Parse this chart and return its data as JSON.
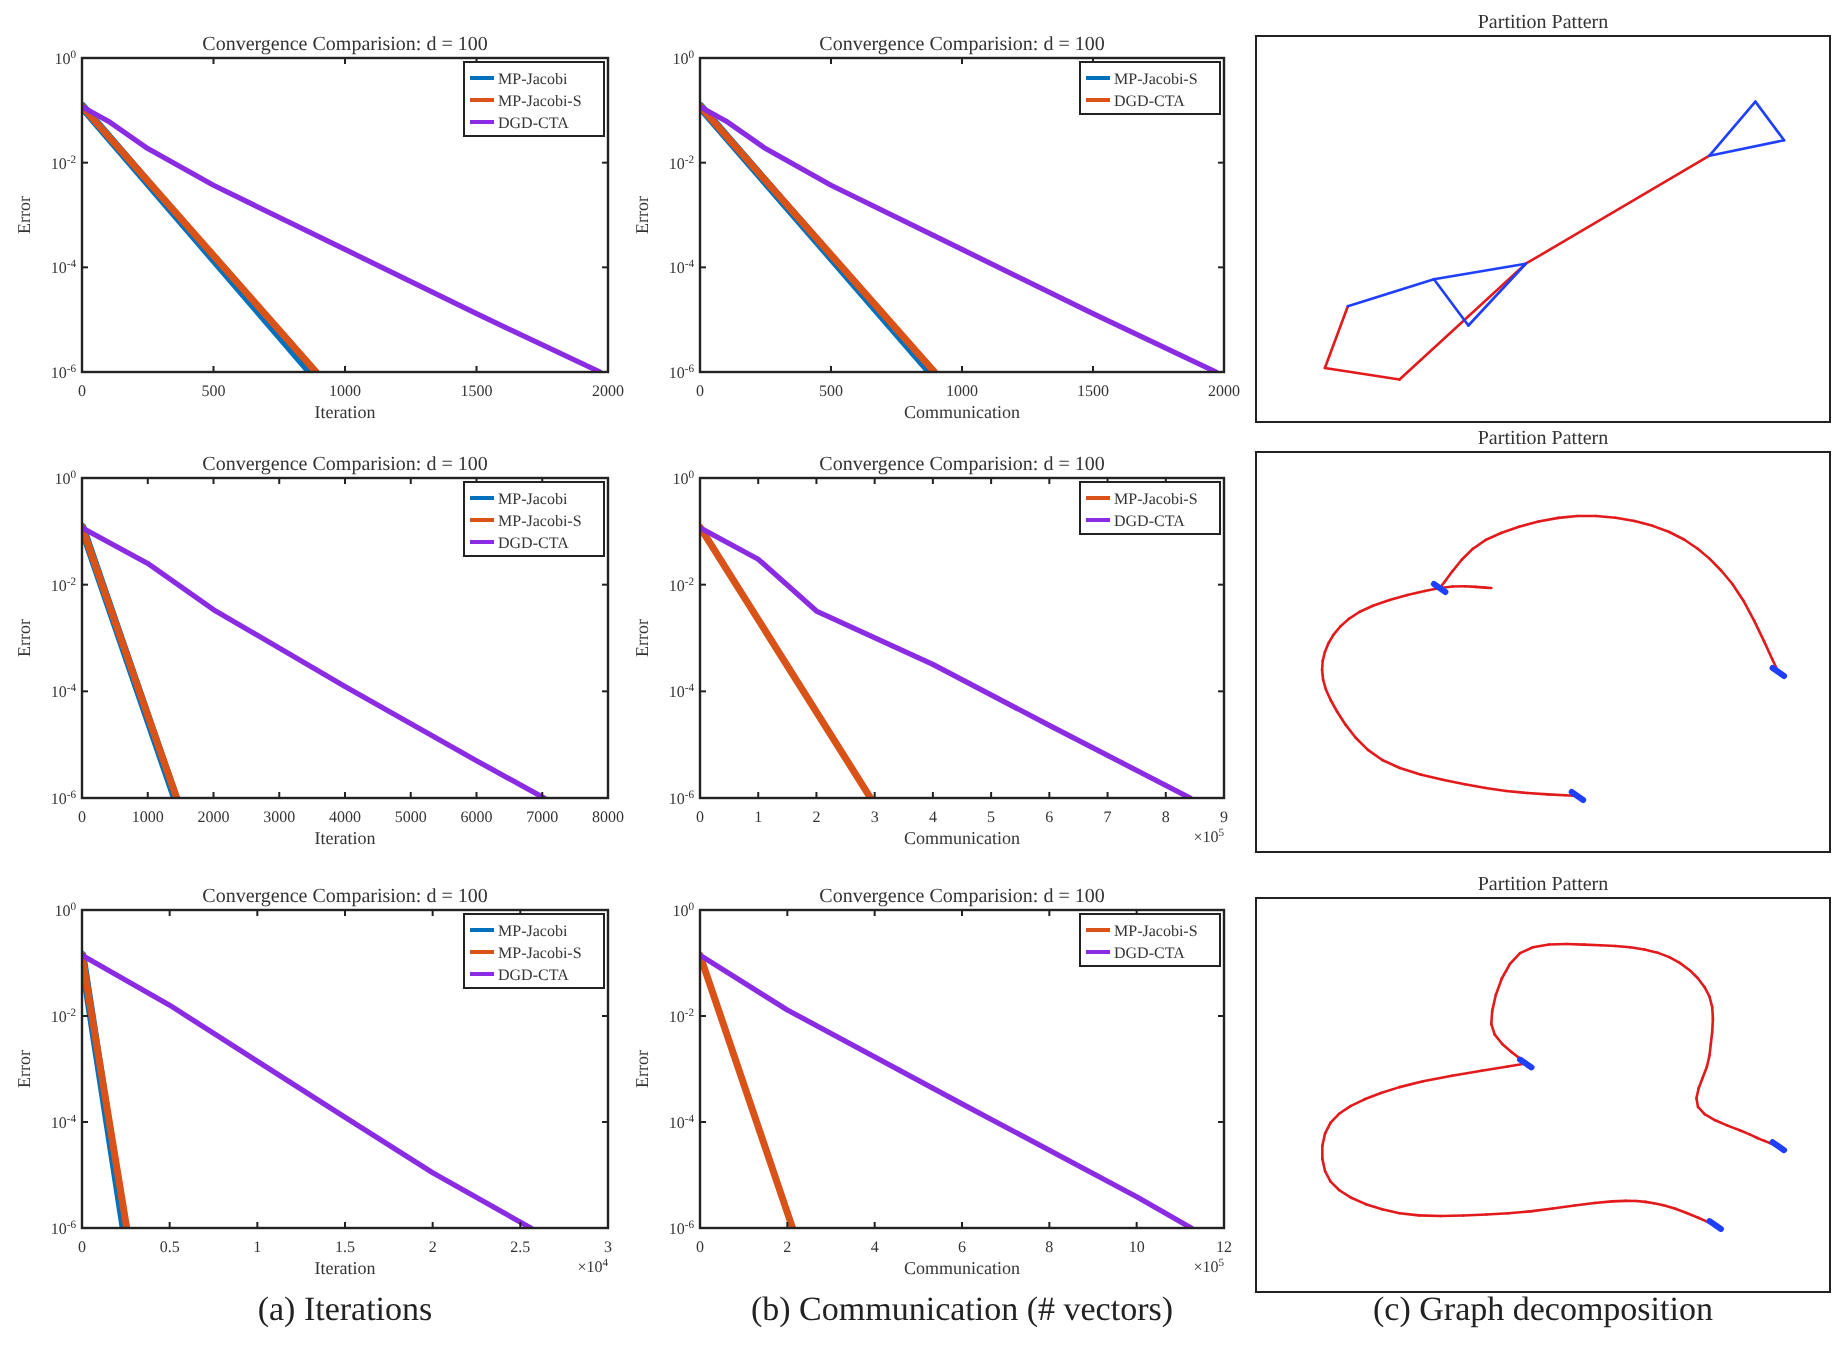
{
  "chart_data": [
    {
      "type": "line",
      "title": "Convergence Comparision: d = 100",
      "xlabel": "Iteration",
      "ylabel": "Error",
      "log": true,
      "legend": "top right",
      "xlim": [
        0,
        2000
      ],
      "xticks": [
        0,
        500,
        1000,
        1500,
        2000
      ],
      "ylim": [
        1e-06,
        1
      ],
      "yticks": [
        {
          "value": 1,
          "label": "10$^{0}$"
        },
        {
          "value": 0.01,
          "label": "10$^{-2}$"
        },
        {
          "value": 0.0001,
          "label": "10$^{-4}$"
        },
        {
          "value": 1e-06,
          "label": "10$^{-6}$"
        }
      ],
      "series": [
        {
          "name": "MP-Jacobi",
          "color": "#0072bd",
          "x": [
            0,
            870
          ],
          "values": [
            0.12,
            1e-06
          ]
        },
        {
          "name": "MP-Jacobi-S",
          "color": "#d95319",
          "x": [
            0,
            890
          ],
          "values": [
            0.12,
            1e-06
          ]
        },
        {
          "name": "DGD-CTA",
          "color": "#8b2be2",
          "x": [
            0,
            100,
            250,
            500,
            1000,
            1500,
            1970
          ],
          "values": [
            0.117,
            0.062,
            0.0186,
            0.0037,
            0.00022,
            1.3e-05,
            1e-06
          ]
        }
      ]
    },
    {
      "type": "line",
      "title": "Convergence Comparision: d = 100",
      "xlabel": "Communication",
      "ylabel": "Error",
      "log": true,
      "legend": "top right",
      "xlim": [
        0,
        2000
      ],
      "xticks": [
        0,
        500,
        1000,
        1500,
        2000
      ],
      "ylim": [
        1e-06,
        1
      ],
      "yticks": [
        {
          "value": 1,
          "label": "10$^{0}$"
        },
        {
          "value": 0.01,
          "label": "10$^{-2}$"
        },
        {
          "value": 0.0001,
          "label": "10$^{-4}$"
        },
        {
          "value": 1e-06,
          "label": "10$^{-6}$"
        }
      ],
      "series": [
        {
          "name": "MP-Jacobi-S",
          "color": "#0072bd",
          "x": [
            0,
            880
          ],
          "values": [
            0.12,
            1e-06
          ]
        },
        {
          "name": "DGD-CTA",
          "color": "#d95319",
          "x": [
            0,
            895
          ],
          "values": [
            0.12,
            1e-06
          ]
        },
        {
          "color": "#8b2be2",
          "x": [
            0,
            100,
            250,
            500,
            1000,
            1500,
            1970
          ],
          "values": [
            0.117,
            0.062,
            0.0186,
            0.0037,
            0.00022,
            1.3e-05,
            1e-06
          ]
        }
      ]
    },
    {
      "type": "other",
      "title": "Partition Pattern"
    },
    {
      "type": "line",
      "title": "Convergence Comparision: d = 100",
      "xlabel": "Iteration",
      "ylabel": "Error",
      "log": true,
      "legend": "top right",
      "xlim": [
        0,
        8000
      ],
      "xticks": [
        0,
        1000,
        2000,
        3000,
        4000,
        5000,
        6000,
        7000,
        8000
      ],
      "ylim": [
        1e-06,
        1
      ],
      "yticks": [
        {
          "value": 1,
          "label": "10$^{0}$"
        },
        {
          "value": 0.01,
          "label": "10$^{-2}$"
        },
        {
          "value": 0.0001,
          "label": "10$^{-4}$"
        },
        {
          "value": 1e-06,
          "label": "10$^{-6}$"
        }
      ],
      "series": [
        {
          "name": "MP-Jacobi",
          "color": "#0072bd",
          "x": [
            0,
            1420
          ],
          "values": [
            0.12,
            1e-06
          ]
        },
        {
          "name": "MP-Jacobi-S",
          "color": "#d95319",
          "x": [
            0,
            1440
          ],
          "values": [
            0.12,
            1e-06
          ]
        },
        {
          "name": "DGD-CTA",
          "color": "#8b2be2",
          "x": [
            0,
            1000,
            2000,
            4000,
            6000,
            7030
          ],
          "values": [
            0.117,
            0.025,
            0.0034,
            0.000123,
            5e-06,
            1e-06
          ]
        }
      ]
    },
    {
      "type": "line",
      "title": "Convergence Comparision: d = 100",
      "xlabel": "Communication",
      "ylabel": "Error",
      "log": true,
      "legend": "top right",
      "xlim": [
        0,
        9
      ],
      "xticks": [
        0,
        1,
        2,
        3,
        4,
        5,
        6,
        7,
        8,
        9
      ],
      "ylim": [
        1e-06,
        1
      ],
      "yticks": [
        {
          "value": 1,
          "label": "10$^{0}$"
        },
        {
          "value": 0.01,
          "label": "10$^{-2}$"
        },
        {
          "value": 0.0001,
          "label": "10$^{-4}$"
        },
        {
          "value": 1e-06,
          "label": "10$^{-6}$"
        }
      ],
      "annotations": [
        "×10$^{5}$"
      ],
      "series": [
        {
          "name": "MP-Jacobi-S",
          "color": "#d95319",
          "x": [
            0,
            2.93
          ],
          "values": [
            0.12,
            1e-06
          ]
        },
        {
          "name": "DGD-CTA",
          "color": "#8b2be2",
          "x": [
            0,
            1,
            2,
            4,
            6,
            8.42
          ],
          "values": [
            0.117,
            0.03,
            0.0032,
            0.00032,
            2.3e-05,
            1e-06
          ]
        }
      ]
    },
    {
      "type": "other",
      "title": "Partition Pattern"
    },
    {
      "type": "line",
      "title": "Convergence Comparision: d = 100",
      "xlabel": "Iteration",
      "ylabel": "Error",
      "log": true,
      "legend": "top right",
      "xlim": [
        0,
        3
      ],
      "xticks": [
        0,
        0.5,
        1,
        1.5,
        2,
        2.5,
        3
      ],
      "ylim": [
        1e-06,
        1
      ],
      "yticks": [
        {
          "value": 1,
          "label": "10$^{0}$"
        },
        {
          "value": 0.01,
          "label": "10$^{-2}$"
        },
        {
          "value": 0.0001,
          "label": "10$^{-4}$"
        },
        {
          "value": 1e-06,
          "label": "10$^{-6}$"
        }
      ],
      "annotations": [
        "×10$^{4}$",
        "(a) Iterations"
      ],
      "series": [
        {
          "name": "MP-Jacobi",
          "color": "#0072bd",
          "x": [
            0,
            0.24
          ],
          "values": [
            0.14,
            1e-06
          ]
        },
        {
          "name": "MP-Jacobi-S",
          "color": "#d95319",
          "x": [
            0,
            0.255
          ],
          "values": [
            0.14,
            1e-06
          ]
        },
        {
          "name": "DGD-CTA",
          "color": "#8b2be2",
          "x": [
            0,
            0.5,
            1,
            1.5,
            2,
            2.56
          ],
          "values": [
            0.14,
            0.016,
            0.0014,
            0.000123,
            1.1e-05,
            1e-06
          ]
        }
      ]
    },
    {
      "type": "line",
      "title": "Convergence Comparision: d = 100",
      "xlabel": "Communication",
      "ylabel": "Error",
      "log": true,
      "legend": "top right",
      "xlim": [
        0,
        12
      ],
      "xticks": [
        0,
        2,
        4,
        6,
        8,
        10,
        12
      ],
      "ylim": [
        1e-06,
        1
      ],
      "yticks": [
        {
          "value": 1,
          "label": "10$^{0}$"
        },
        {
          "value": 0.01,
          "label": "10$^{-2}$"
        },
        {
          "value": 0.0001,
          "label": "10$^{-4}$"
        },
        {
          "value": 1e-06,
          "label": "10$^{-6}$"
        }
      ],
      "annotations": [
        "×10$^{5}$",
        "(b) Communication (# vectors)"
      ],
      "series": [
        {
          "name": "MP-Jacobi-S",
          "color": "#d95319",
          "x": [
            0,
            2.12
          ],
          "values": [
            0.14,
            1e-06
          ]
        },
        {
          "name": "DGD-CTA",
          "color": "#8b2be2",
          "x": [
            0,
            2,
            6,
            10,
            11.25
          ],
          "values": [
            0.14,
            0.013,
            0.00022,
            3.9e-06,
            1e-06
          ]
        }
      ]
    },
    {
      "type": "other",
      "title": "Partition Pattern",
      "annotations": [
        "(c) Graph decomposition"
      ]
    }
  ]
}
